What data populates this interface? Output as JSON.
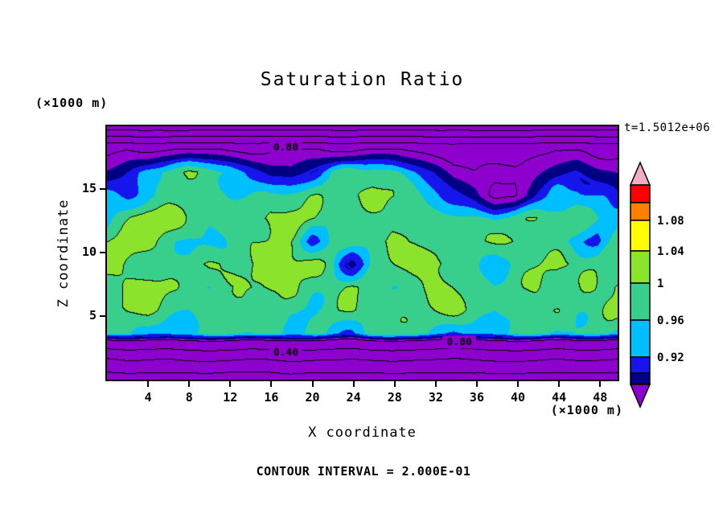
{
  "title": "Saturation Ratio",
  "annotations": {
    "time_label": "t=1.5012e+06",
    "contour_interval_label": "CONTOUR INTERVAL = 2.000E-01",
    "z_axis_unit": "(×1000 m)",
    "x_axis_unit": "(×1000 m)"
  },
  "axes": {
    "x_label": "X coordinate",
    "z_label": "Z coordinate",
    "x_ticks": [
      4,
      8,
      12,
      16,
      20,
      24,
      28,
      32,
      36,
      40,
      44,
      48
    ],
    "z_ticks": [
      5,
      10,
      15
    ],
    "x_range": [
      0,
      49.7
    ],
    "z_range": [
      0,
      19.9
    ]
  },
  "colorbar": {
    "boundary_labels": [
      {
        "value": 1.08,
        "text": "1.08"
      },
      {
        "value": 1.04,
        "text": "1.04"
      },
      {
        "value": 1.0,
        "text": "1"
      },
      {
        "value": 0.96,
        "text": "0.96"
      },
      {
        "value": 0.92,
        "text": "0.92"
      }
    ]
  },
  "chart_data": {
    "type": "heatmap",
    "subtype": "filled-contour",
    "title": "Saturation Ratio",
    "xlabel": "X coordinate (×1000 m)",
    "ylabel": "Z coordinate (×1000 m)",
    "x_range": [
      0,
      49.7
    ],
    "z_range": [
      0,
      19.9
    ],
    "contour_interval": 0.2,
    "contour_labels": [
      {
        "text": "0.80",
        "x": 17.4,
        "z": 18.2
      },
      {
        "text": "0.80",
        "x": 34.3,
        "z": 2.95
      },
      {
        "text": "0.40",
        "x": 17.4,
        "z": 2.1
      }
    ],
    "color_levels": [
      {
        "min": 1.16,
        "color": "#F2AFC4",
        "name": "pink"
      },
      {
        "min": 1.12,
        "color": "#FF0000",
        "name": "red"
      },
      {
        "min": 1.08,
        "color": "#FF7F00",
        "name": "orange"
      },
      {
        "min": 1.04,
        "color": "#FFFF00",
        "name": "yellow"
      },
      {
        "min": 1.0,
        "color": "#8CE32C",
        "name": "green-yellow"
      },
      {
        "min": 0.96,
        "color": "#38CF8C",
        "name": "spring-green"
      },
      {
        "min": 0.92,
        "color": "#00BFFF",
        "name": "cyan"
      },
      {
        "min": 0.88,
        "color": "#1616EC",
        "name": "blue"
      },
      {
        "min": 0.84,
        "color": "#000085",
        "name": "navy"
      },
      {
        "min": -9,
        "color": "#8E00CE",
        "name": "purple"
      }
    ],
    "grid": {
      "note": "saturation ratio sampled on 26 x-columns (x=0..49.7) by 12 z-rows (top row z=19.9 down to z=0)",
      "values": [
        [
          0.08,
          0.08,
          0.08,
          0.08,
          0.08,
          0.08,
          0.08,
          0.08,
          0.08,
          0.08,
          0.08,
          0.08,
          0.08,
          0.08,
          0.08,
          0.08,
          0.08,
          0.08,
          0.08,
          0.08,
          0.08,
          0.08,
          0.08,
          0.08,
          0.08,
          0.08
        ],
        [
          0.79,
          0.8,
          0.78,
          0.79,
          0.81,
          0.8,
          0.78,
          0.77,
          0.79,
          0.8,
          0.81,
          0.79,
          0.78,
          0.8,
          0.81,
          0.79,
          0.77,
          0.76,
          0.78,
          0.77,
          0.76,
          0.78,
          0.8,
          0.79,
          0.77,
          0.78
        ],
        [
          0.85,
          0.88,
          0.93,
          0.97,
          0.99,
          0.98,
          0.96,
          0.92,
          0.87,
          0.85,
          0.9,
          0.95,
          0.98,
          0.99,
          0.97,
          0.93,
          0.88,
          0.82,
          0.8,
          0.81,
          0.81,
          0.83,
          0.86,
          0.89,
          0.86,
          0.84
        ],
        [
          0.93,
          0.92,
          0.95,
          0.98,
          1.0,
          0.99,
          0.97,
          0.96,
          0.97,
          0.99,
          0.98,
          0.97,
          0.99,
          1.01,
          1.0,
          0.98,
          0.95,
          0.9,
          0.86,
          0.78,
          0.79,
          0.88,
          0.94,
          0.96,
          0.92,
          0.89
        ],
        [
          0.97,
          0.99,
          1.02,
          1.01,
          0.98,
          0.96,
          0.97,
          1.0,
          1.02,
          1.01,
          0.99,
          0.97,
          0.96,
          0.98,
          1.01,
          1.02,
          1.0,
          0.98,
          0.96,
          0.94,
          0.97,
          1.0,
          1.01,
          0.99,
          0.97,
          0.95
        ],
        [
          0.99,
          1.01,
          1.0,
          0.97,
          0.95,
          0.97,
          0.99,
          1.01,
          1.0,
          0.98,
          0.9,
          0.96,
          0.99,
          1.01,
          1.02,
          0.99,
          0.97,
          0.95,
          0.97,
          0.99,
          1.01,
          0.99,
          0.97,
          0.95,
          0.9,
          0.97
        ],
        [
          1.01,
          0.99,
          0.97,
          0.99,
          1.01,
          1.02,
          1.0,
          0.98,
          1.0,
          1.02,
          1.0,
          0.98,
          0.86,
          0.97,
          1.0,
          1.02,
          1.01,
          0.99,
          0.97,
          0.95,
          0.98,
          1.0,
          1.02,
          1.0,
          0.98,
          0.96
        ],
        [
          0.98,
          1.0,
          1.02,
          1.0,
          0.98,
          0.96,
          0.98,
          1.0,
          1.01,
          0.99,
          0.97,
          0.99,
          1.01,
          0.99,
          0.97,
          0.99,
          1.01,
          1.0,
          0.98,
          0.96,
          0.99,
          1.01,
          0.99,
          0.97,
          0.99,
          1.01
        ],
        [
          0.97,
          0.99,
          1.01,
          0.99,
          0.97,
          0.99,
          1.01,
          0.99,
          0.97,
          0.95,
          0.97,
          0.99,
          1.01,
          1.0,
          0.98,
          0.96,
          0.98,
          1.0,
          0.98,
          0.96,
          0.98,
          1.0,
          0.98,
          0.96,
          0.98,
          1.0
        ],
        [
          0.96,
          0.98,
          0.97,
          0.95,
          0.97,
          0.98,
          0.96,
          0.94,
          0.96,
          0.98,
          0.97,
          0.95,
          0.93,
          0.96,
          0.98,
          0.97,
          0.95,
          0.93,
          0.95,
          0.97,
          0.98,
          0.96,
          0.94,
          0.96,
          0.97,
          0.95
        ],
        [
          0.45,
          0.48,
          0.46,
          0.44,
          0.47,
          0.49,
          0.47,
          0.45,
          0.47,
          0.49,
          0.48,
          0.46,
          0.44,
          0.47,
          0.49,
          0.48,
          0.46,
          0.44,
          0.46,
          0.48,
          0.49,
          0.47,
          0.45,
          0.47,
          0.48,
          0.46
        ],
        [
          0.1,
          0.11,
          0.1,
          0.11,
          0.1,
          0.11,
          0.1,
          0.11,
          0.1,
          0.12,
          0.1,
          0.11,
          0.1,
          0.11,
          0.12,
          0.1,
          0.11,
          0.1,
          0.11,
          0.1,
          0.12,
          0.11,
          0.1,
          0.11,
          0.1,
          0.11
        ]
      ]
    }
  }
}
